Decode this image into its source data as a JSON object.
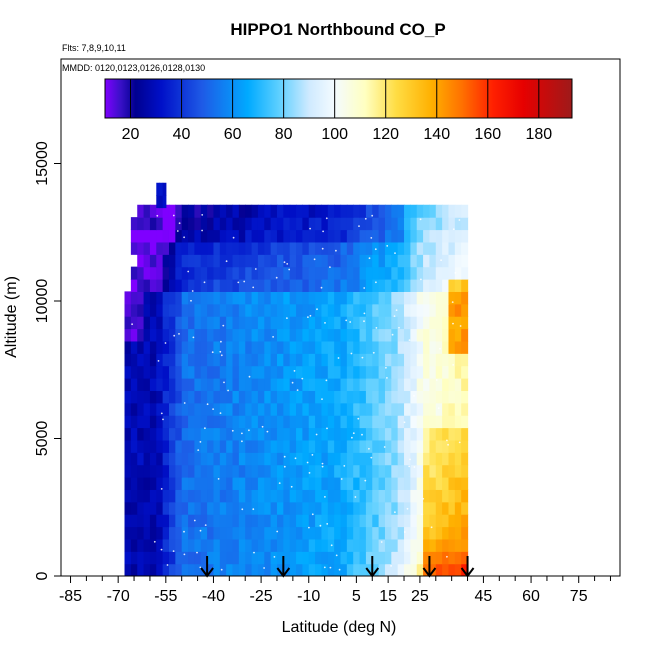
{
  "chart_data": {
    "type": "heatmap",
    "title": "HIPPO1 Northbound CO_P",
    "flights_label": "Flts: 7,8,9,10,11",
    "dates_label": "MMDD: 0120,0123,0126,0128,0130",
    "xlabel": "Latitude (deg N)",
    "ylabel": "Altitude (m)",
    "xlim": [
      -88,
      88
    ],
    "ylim": [
      0,
      18800
    ],
    "x_ticks": [
      -85,
      -70,
      -55,
      -40,
      -25,
      -10,
      5,
      15,
      25,
      45,
      60,
      75
    ],
    "x_tick_labels": [
      "-85",
      "-70",
      "-55",
      "-40",
      "-25",
      "-10",
      "5",
      "15",
      "25",
      "45",
      "60",
      "75"
    ],
    "x_minor_ticks": [
      -80,
      -75,
      -65,
      -60,
      -50,
      -45,
      -35,
      -30,
      -20,
      -15,
      -5,
      0,
      10,
      20,
      30,
      35,
      40,
      50,
      55,
      65,
      70,
      80,
      85
    ],
    "y_ticks": [
      0,
      5000,
      10000,
      15000
    ],
    "y_tick_labels": [
      "0",
      "5000",
      "10000",
      "15000"
    ],
    "colorbar": {
      "min": 10,
      "max": 193,
      "ticks": [
        20,
        40,
        60,
        80,
        100,
        120,
        140,
        160,
        180
      ],
      "tick_labels": [
        "20",
        "40",
        "60",
        "80",
        "100",
        "120",
        "140",
        "160",
        "180"
      ],
      "colors": [
        "#7f00ff",
        "#3a10c8",
        "#000090",
        "#0010c8",
        "#1e5ae6",
        "#00aaff",
        "#5ccfff",
        "#cfeaff",
        "#f4fbff",
        "#ffffc0",
        "#ffdd44",
        "#ffb000",
        "#ff7000",
        "#ff2000",
        "#e60000",
        "#9e1a1a"
      ],
      "color_stops": [
        10,
        16,
        22,
        32,
        48,
        66,
        78,
        90,
        100,
        112,
        124,
        138,
        150,
        162,
        174,
        193
      ]
    },
    "data_extent": {
      "lat_min": -68,
      "lat_max": 40,
      "alt_min": 0,
      "alt_max": 13900,
      "grid_lat_step": 2,
      "grid_alt_step": 450
    },
    "flight_markers": {
      "latitudes": [
        -42,
        -18,
        10,
        28,
        40
      ],
      "marker": "down-arrow"
    }
  }
}
